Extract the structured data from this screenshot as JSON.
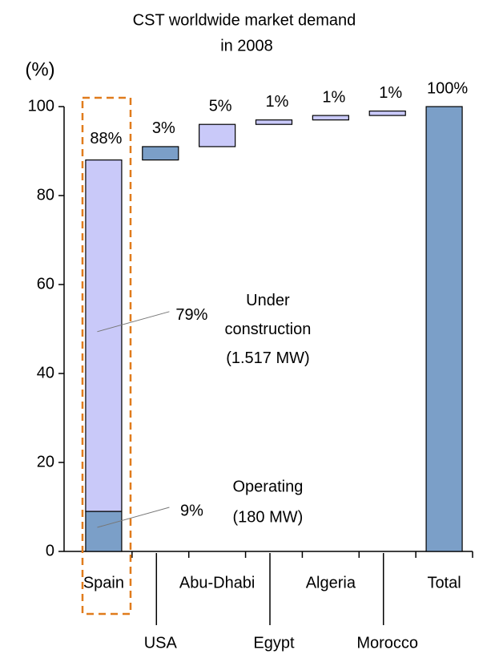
{
  "chart_data": {
    "type": "waterfall",
    "title": "CST worldwide market demand",
    "subtitle": "in 2008",
    "ylabel": "(%)",
    "categories": [
      "Spain",
      "USA",
      "Abu-Dhabi",
      "Egypt",
      "Algeria",
      "Morocco",
      "Total"
    ],
    "last_is_total": true,
    "series": [
      {
        "name": "Operating",
        "note": "(180 MW)",
        "color": "#7b9fc8",
        "values": [
          9,
          3,
          null,
          null,
          null,
          null,
          100
        ],
        "value_labels": [
          "9%",
          "3%",
          null,
          null,
          null,
          null,
          "100%"
        ]
      },
      {
        "name": "Under construction",
        "note": "(1.517 MW)",
        "color": "#c9c9f9",
        "values": [
          79,
          null,
          5,
          1,
          1,
          1,
          null
        ],
        "value_labels": [
          "79%",
          null,
          "5%",
          "1%",
          "1%",
          "1%",
          null
        ]
      }
    ],
    "stack_total_labels": [
      "88%",
      null,
      null,
      null,
      null,
      null,
      null
    ],
    "highlight_color": "#e07b1c",
    "ylim": [
      0,
      100
    ],
    "yticks": [
      0,
      20,
      40,
      60,
      80,
      100
    ]
  }
}
